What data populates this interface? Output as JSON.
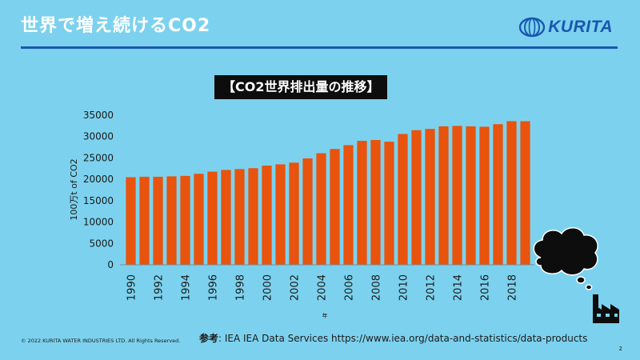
{
  "slide": {
    "title": "世界で増え続けるCO2",
    "logo_text": "KURITA",
    "copyright": "© 2022 KURITA WATER INDUSTRIES LTD. All Rights Reserved.",
    "source_label": "参考",
    "source_text": ": IEA IEA Data Services https://www.iea.org/data-and-statistics/data-products",
    "page_number": "2",
    "brand_color": "#1a56b0",
    "background_color": "#7cd2ee"
  },
  "chart_data": {
    "type": "bar",
    "title": "【CO2世界排出量の推移】",
    "xlabel": "年",
    "ylabel": "100万t of CO2",
    "ylim": [
      0,
      35000
    ],
    "yticks": [
      0,
      5000,
      10000,
      15000,
      20000,
      25000,
      30000,
      35000
    ],
    "grid": false,
    "legend": "none",
    "bar_color": "#e8530e",
    "categories": [
      "1990",
      "1991",
      "1992",
      "1993",
      "1994",
      "1995",
      "1996",
      "1997",
      "1998",
      "1999",
      "2000",
      "2001",
      "2002",
      "2003",
      "2004",
      "2005",
      "2006",
      "2007",
      "2008",
      "2009",
      "2010",
      "2011",
      "2012",
      "2013",
      "2014",
      "2015",
      "2016",
      "2017",
      "2018",
      "2019"
    ],
    "values": [
      20500,
      20600,
      20600,
      20700,
      20800,
      21300,
      21800,
      22200,
      22400,
      22600,
      23200,
      23500,
      23900,
      24900,
      26100,
      27100,
      28000,
      29000,
      29200,
      28800,
      30600,
      31500,
      31800,
      32400,
      32500,
      32400,
      32300,
      32900,
      33600,
      33600
    ],
    "xtick_labels": [
      "1990",
      "1992",
      "1994",
      "1996",
      "1998",
      "2000",
      "2002",
      "2004",
      "2006",
      "2008",
      "2010",
      "2012",
      "2014",
      "2016",
      "2018"
    ]
  },
  "decoration": {
    "cloud_icon": "smoke-cloud-icon",
    "factory_icon": "factory-icon"
  }
}
